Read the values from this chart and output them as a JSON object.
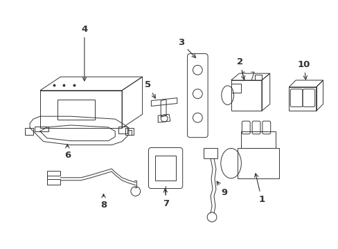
{
  "background_color": "#ffffff",
  "line_color": "#333333",
  "label_color": "#111111",
  "fig_width": 4.89,
  "fig_height": 3.6,
  "dpi": 100
}
